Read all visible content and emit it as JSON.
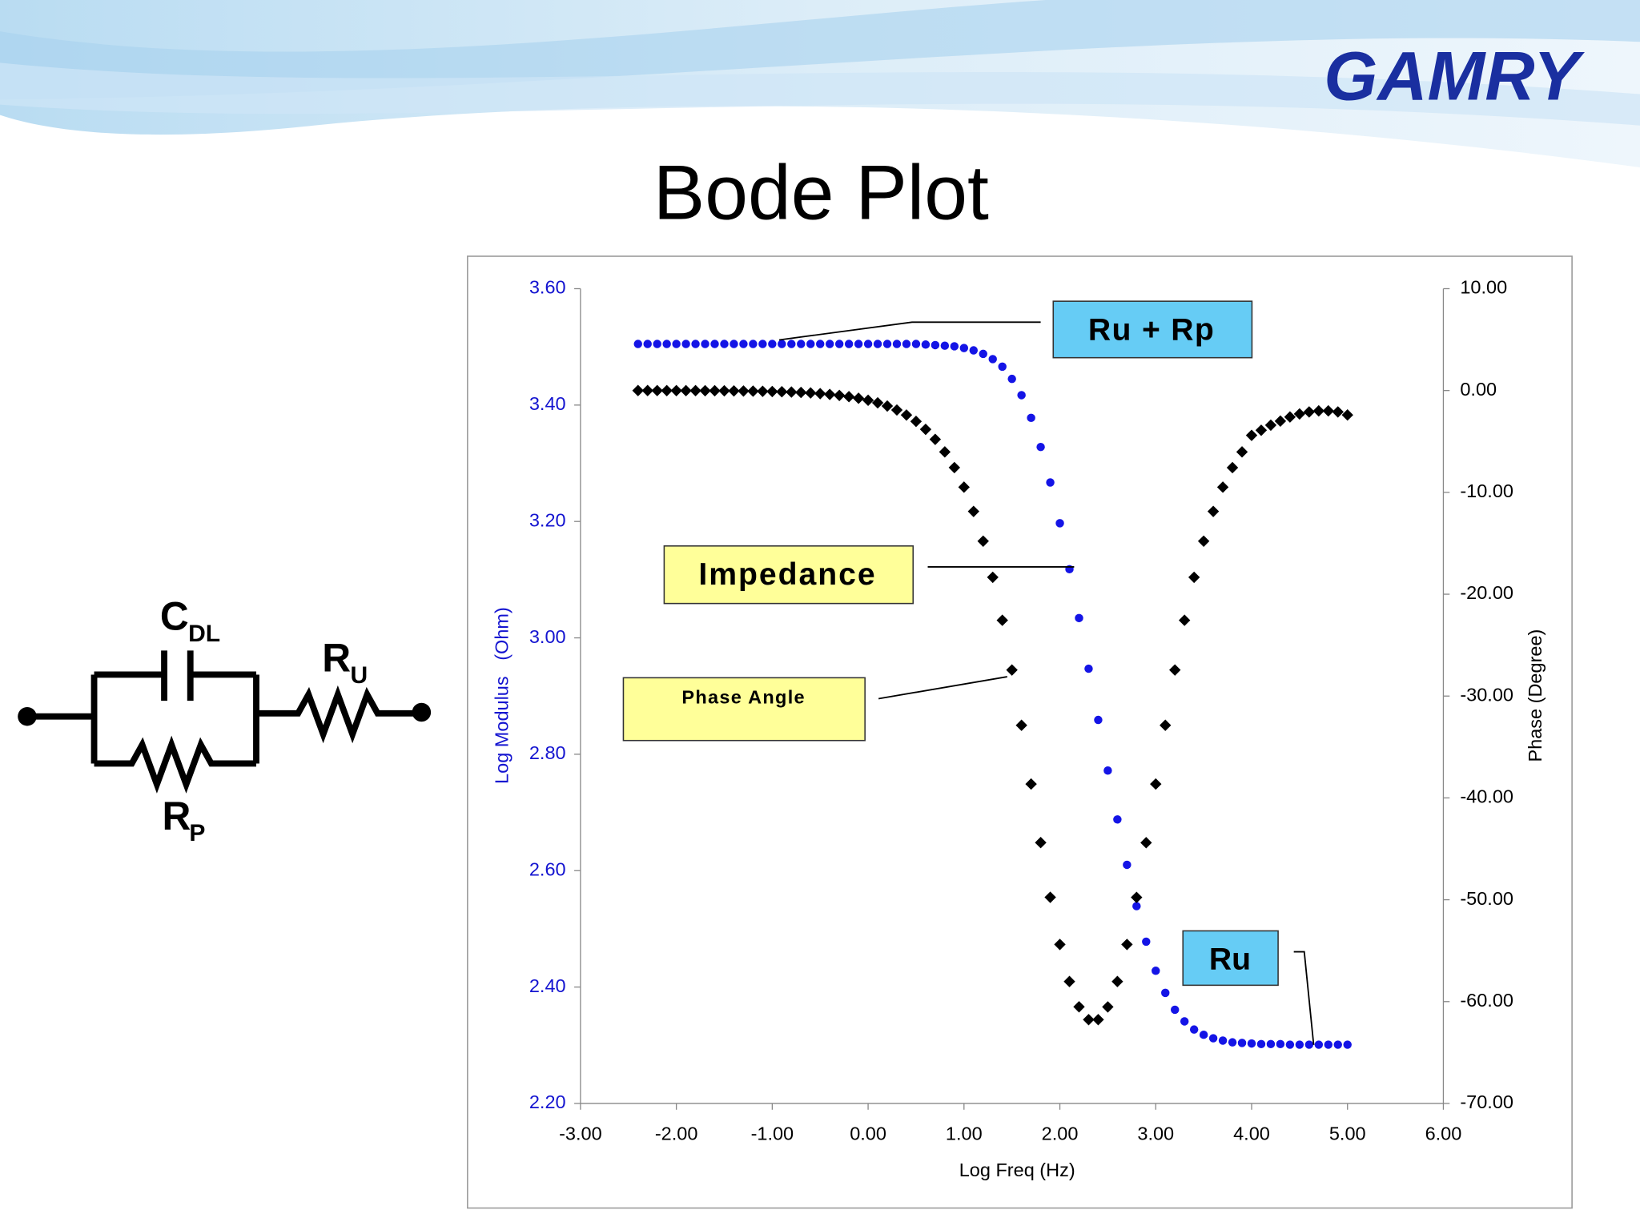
{
  "header": {
    "logo": "GAMRY",
    "title": "Bode Plot"
  },
  "circuit": {
    "capacitor": {
      "main": "C",
      "sub": "DL"
    },
    "resistor_u": {
      "main": "R",
      "sub": "U"
    },
    "resistor_p": {
      "main": "R",
      "sub": "P"
    }
  },
  "chart_data": {
    "type": "scatter",
    "xlabel": "Log Freq (Hz)",
    "ylabel": "Log Modulus   (Ohm)",
    "y2label": "Phase (Degree)",
    "annotations": [
      "Ru + Rp",
      "Ru"
    ],
    "x": [
      -2.4,
      -2.3,
      -2.2,
      -2.1,
      -2.0,
      -1.9,
      -1.8,
      -1.7,
      -1.6,
      -1.5,
      -1.4,
      -1.3,
      -1.2,
      -1.1,
      -1.0,
      -0.9,
      -0.8,
      -0.7,
      -0.6,
      -0.5,
      -0.4,
      -0.3,
      -0.2,
      -0.1,
      0.0,
      0.1,
      0.2,
      0.3,
      0.4,
      0.5,
      0.6,
      0.7,
      0.8,
      0.9,
      1.0,
      1.1,
      1.2,
      1.3,
      1.4,
      1.5,
      1.6,
      1.7,
      1.8,
      1.9,
      2.0,
      2.1,
      2.2,
      2.3,
      2.4,
      2.5,
      2.6,
      2.7,
      2.8,
      2.9,
      3.0,
      3.1,
      3.2,
      3.3,
      3.4,
      3.5,
      3.6,
      3.7,
      3.8,
      3.9,
      4.0,
      4.1,
      4.2,
      4.3,
      4.4,
      4.5,
      4.6,
      4.7,
      4.8,
      4.9,
      5.0
    ],
    "series": [
      {
        "name": "Impedance",
        "color": "#1414e6",
        "marker": "circle",
        "values": [
          3.505,
          3.505,
          3.505,
          3.505,
          3.505,
          3.505,
          3.505,
          3.505,
          3.505,
          3.505,
          3.505,
          3.505,
          3.505,
          3.505,
          3.505,
          3.505,
          3.505,
          3.505,
          3.505,
          3.505,
          3.505,
          3.505,
          3.505,
          3.505,
          3.505,
          3.505,
          3.505,
          3.505,
          3.505,
          3.505,
          3.504,
          3.503,
          3.502,
          3.501,
          3.498,
          3.494,
          3.488,
          3.479,
          3.466,
          3.445,
          3.417,
          3.378,
          3.328,
          3.267,
          3.197,
          3.118,
          3.034,
          2.947,
          2.859,
          2.772,
          2.688,
          2.61,
          2.539,
          2.478,
          2.428,
          2.39,
          2.361,
          2.341,
          2.327,
          2.318,
          2.312,
          2.308,
          2.305,
          2.304,
          2.303,
          2.302,
          2.302,
          2.302,
          2.301,
          2.301,
          2.301,
          2.301,
          2.301,
          2.301,
          2.301
        ]
      },
      {
        "name": "Phase Angle",
        "color": "#000000",
        "marker": "diamond",
        "axis": "y2",
        "values": [
          -0.004,
          -0.005,
          -0.006,
          -0.008,
          -0.01,
          -0.012,
          -0.015,
          -0.019,
          -0.024,
          -0.03,
          -0.038,
          -0.048,
          -0.061,
          -0.076,
          -0.096,
          -0.121,
          -0.152,
          -0.191,
          -0.241,
          -0.303,
          -0.382,
          -0.481,
          -0.605,
          -0.762,
          -0.959,
          -1.207,
          -1.52,
          -1.913,
          -2.408,
          -3.032,
          -3.814,
          -4.796,
          -6.027,
          -7.568,
          -9.487,
          -11.87,
          -14.79,
          -18.34,
          -22.56,
          -27.44,
          -32.87,
          -38.64,
          -44.39,
          -49.76,
          -54.39,
          -58.03,
          -60.51,
          -61.77,
          -61.77,
          -60.52,
          -58.03,
          -54.39,
          -49.77,
          -44.4,
          -38.64,
          -32.87,
          -27.44,
          -22.56,
          -18.34,
          -14.79,
          -11.87,
          -9.49,
          -7.57,
          -6.03,
          -4.4,
          -3.9,
          -3.4,
          -3.0,
          -2.6,
          -2.3,
          -2.1,
          -2.0,
          -2.0,
          -2.1,
          -2.4
        ]
      }
    ],
    "xlim": [
      -3,
      6
    ],
    "xticks": [
      {
        "value": -3,
        "label": "-3.00"
      },
      {
        "value": -2,
        "label": "-2.00"
      },
      {
        "value": -1,
        "label": "-1.00"
      },
      {
        "value": 0,
        "label": "0.00"
      },
      {
        "value": 1,
        "label": "1.00"
      },
      {
        "value": 2,
        "label": "2.00"
      },
      {
        "value": 3,
        "label": "3.00"
      },
      {
        "value": 4,
        "label": "4.00"
      },
      {
        "value": 5,
        "label": "5.00"
      },
      {
        "value": 6,
        "label": "6.00"
      }
    ],
    "ylim": [
      2.2,
      3.6
    ],
    "yticks": [
      {
        "value": 2.2,
        "label": "2.20"
      },
      {
        "value": 2.4,
        "label": "2.40"
      },
      {
        "value": 2.6,
        "label": "2.60"
      },
      {
        "value": 2.8,
        "label": "2.80"
      },
      {
        "value": 3.0,
        "label": "3.00"
      },
      {
        "value": 3.2,
        "label": "3.20"
      },
      {
        "value": 3.4,
        "label": "3.40"
      },
      {
        "value": 3.6,
        "label": "3.60"
      }
    ],
    "y2lim": [
      -70,
      10
    ],
    "y2ticks": [
      {
        "value": -70,
        "label": "-70.00"
      },
      {
        "value": -60,
        "label": "-60.00"
      },
      {
        "value": -50,
        "label": "-50.00"
      },
      {
        "value": -40,
        "label": "-40.00"
      },
      {
        "value": -30,
        "label": "-30.00"
      },
      {
        "value": -20,
        "label": "-20.00"
      },
      {
        "value": -10,
        "label": "-10.00"
      },
      {
        "value": 0,
        "label": "0.00"
      },
      {
        "value": 10,
        "label": "10.00"
      }
    ],
    "grid": false
  }
}
